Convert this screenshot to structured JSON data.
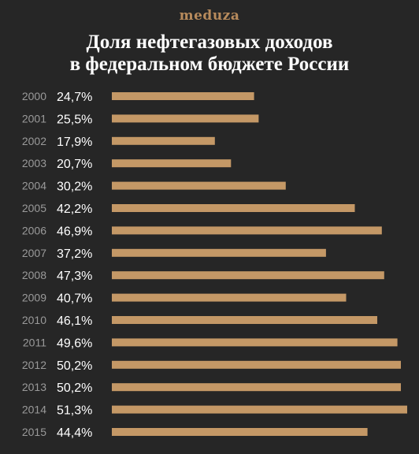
{
  "header": {
    "brand": "meduza",
    "title_line1": "Доля нефтегазовых доходов",
    "title_line2": "в федеральном бюджете России"
  },
  "colors": {
    "background": "#262626",
    "bar": "#c49866",
    "brand": "#b88b5c",
    "year_text": "#9a9a9a",
    "value_text": "#ffffff"
  },
  "chart_data": {
    "type": "bar",
    "orientation": "horizontal",
    "categories": [
      "2000",
      "2001",
      "2002",
      "2003",
      "2004",
      "2005",
      "2006",
      "2007",
      "2008",
      "2009",
      "2010",
      "2011",
      "2012",
      "2013",
      "2014",
      "2015"
    ],
    "values": [
      24.7,
      25.5,
      17.9,
      20.7,
      30.2,
      42.2,
      46.9,
      37.2,
      47.3,
      40.7,
      46.1,
      49.6,
      50.2,
      50.2,
      51.3,
      44.4
    ],
    "value_labels": [
      "24,7%",
      "25,5%",
      "17,9%",
      "20,7%",
      "30,2%",
      "42,2%",
      "46,9%",
      "37,2%",
      "47,3%",
      "40,7%",
      "46,1%",
      "49,6%",
      "50,2%",
      "50,2%",
      "51,3%",
      "44,4%"
    ],
    "title": "Доля нефтегазовых доходов в федеральном бюджете России",
    "xlabel": "",
    "ylabel": "",
    "xlim": [
      0,
      51.3
    ],
    "grid": false,
    "legend": "none"
  }
}
